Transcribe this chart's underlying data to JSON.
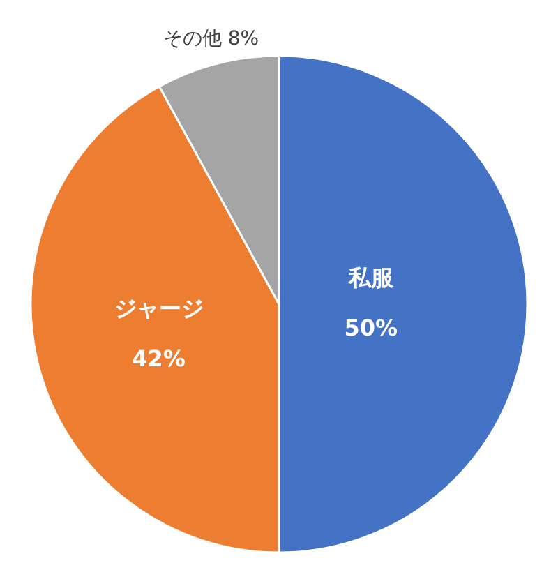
{
  "chart_data": {
    "type": "pie",
    "categories": [
      "私服",
      "ジャージ",
      "その他"
    ],
    "values": [
      50,
      42,
      8
    ],
    "value_labels": [
      "50%",
      "42%",
      "8%"
    ],
    "colors": [
      "#4472c4",
      "#ed7d31",
      "#a5a5a5"
    ]
  }
}
